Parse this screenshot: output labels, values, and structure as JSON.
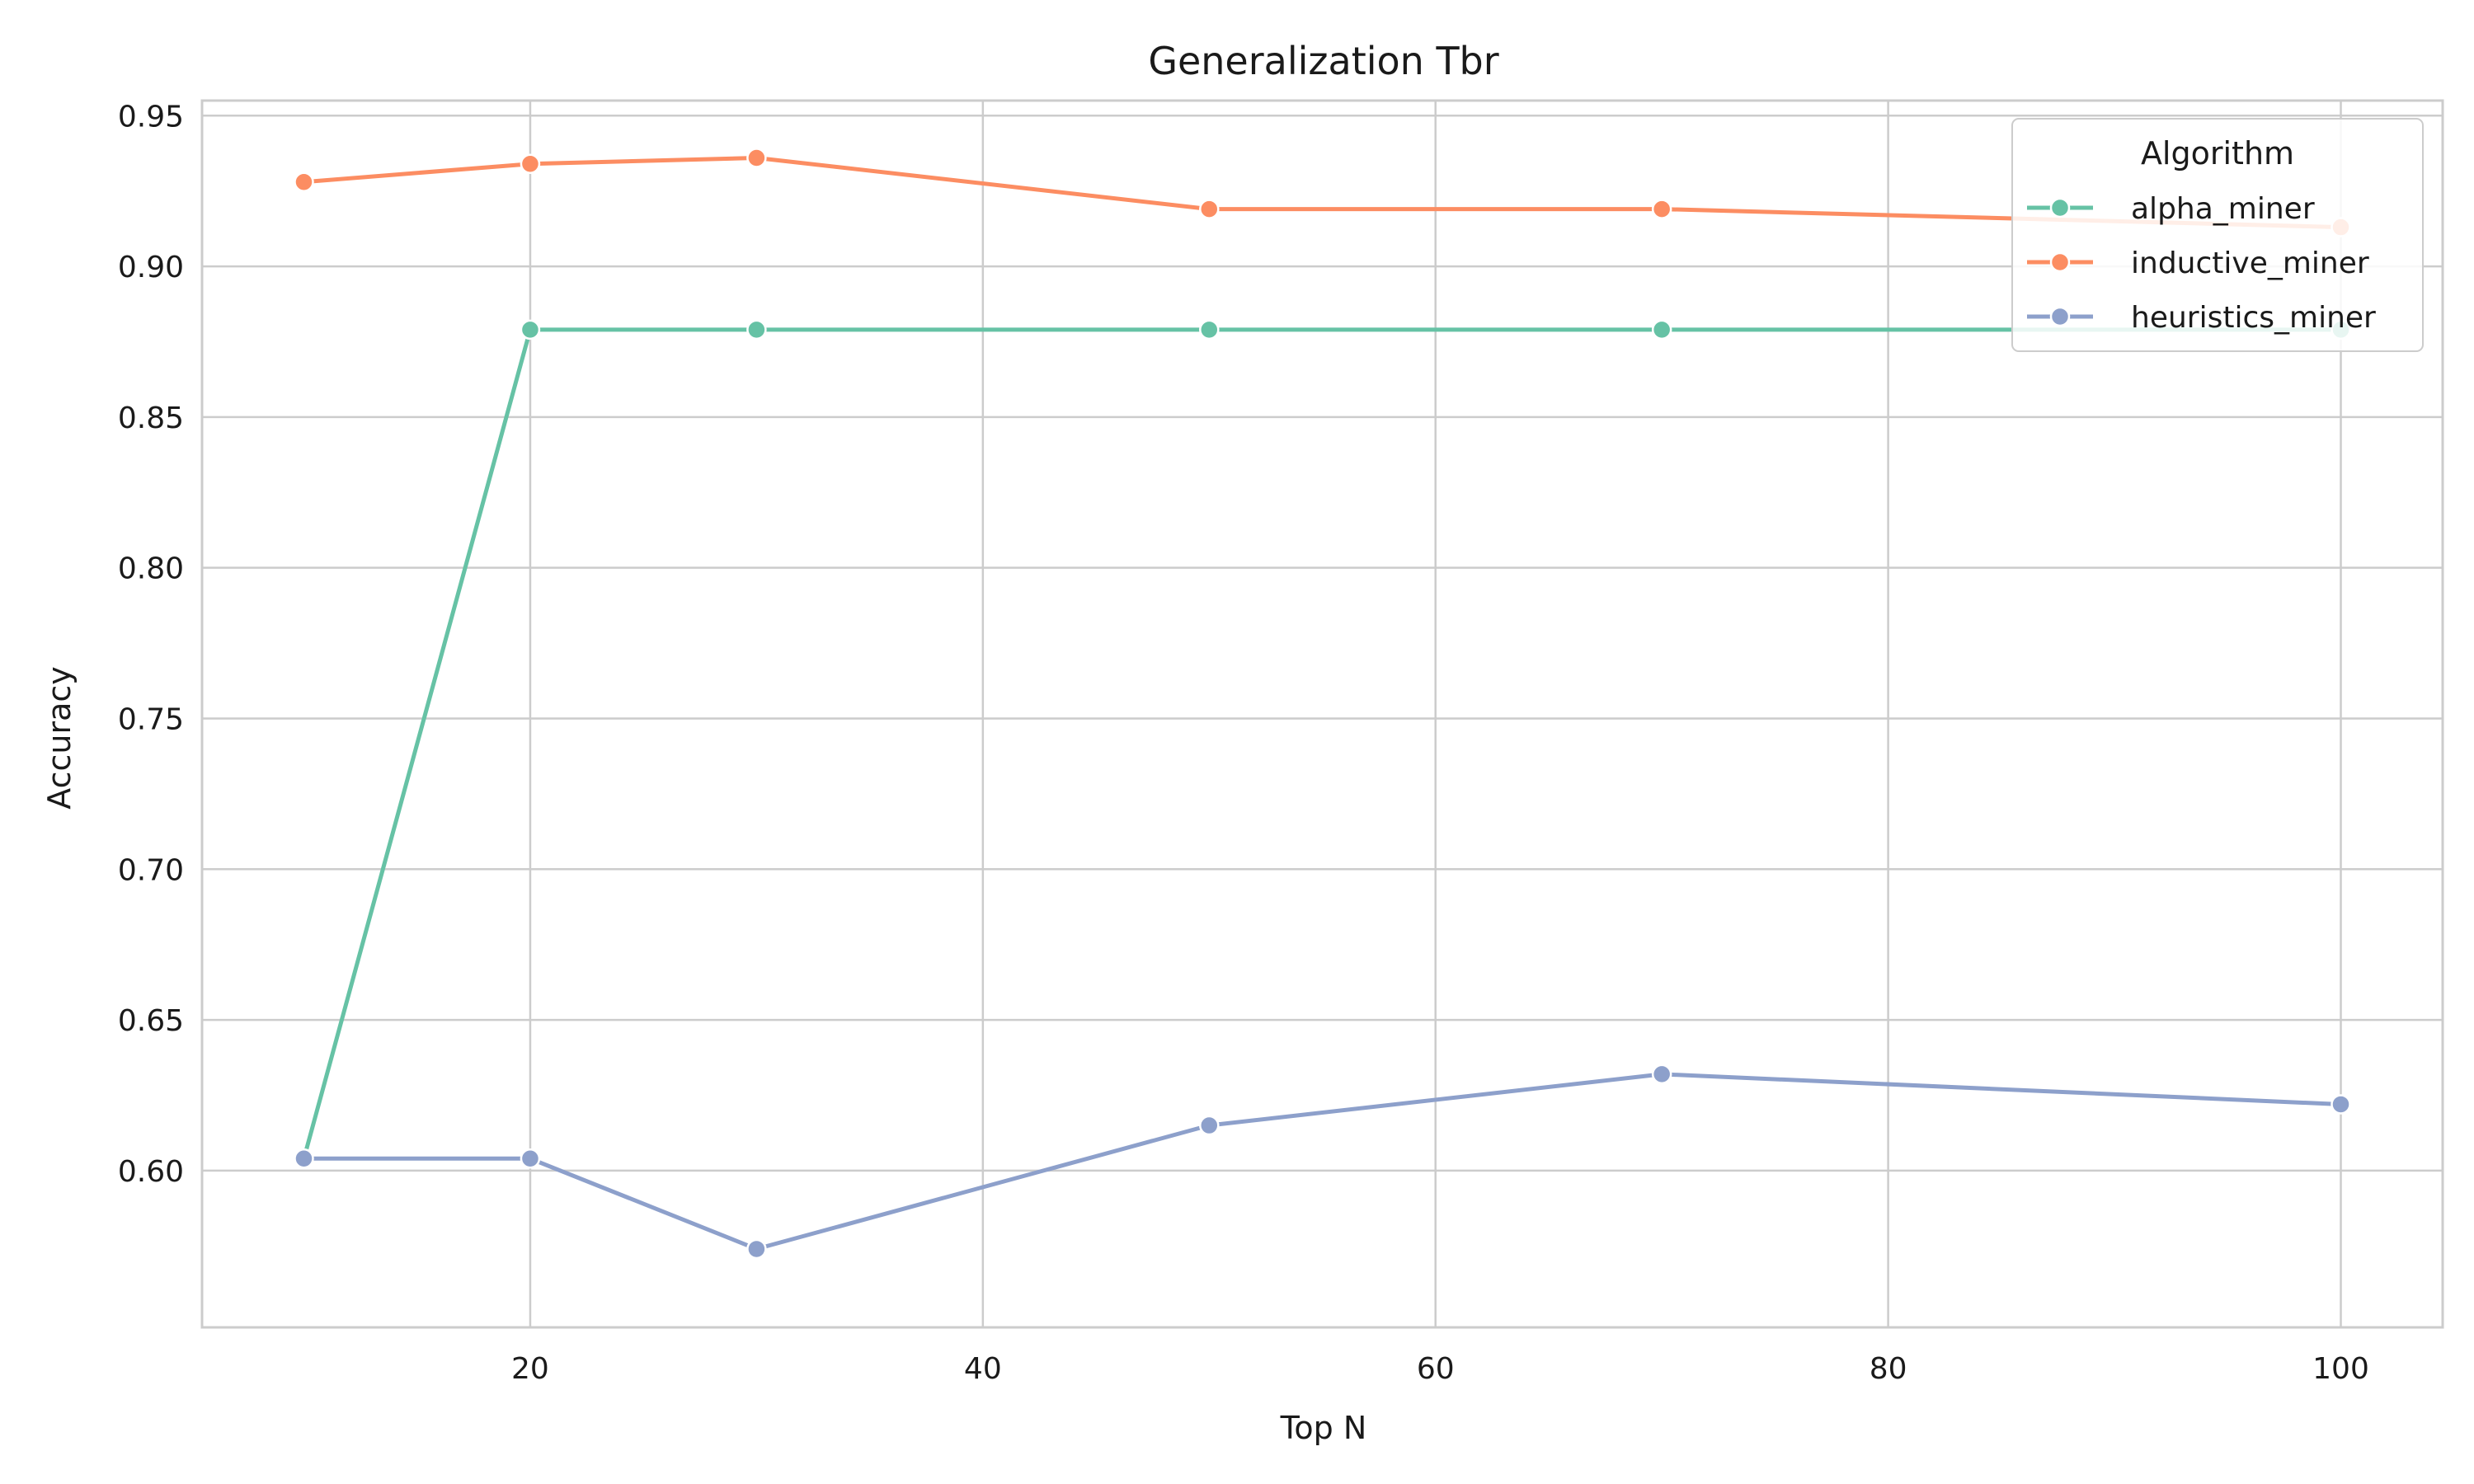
{
  "chart_data": {
    "type": "line",
    "title": "Generalization Tbr",
    "xlabel": "Top N",
    "ylabel": "Accuracy",
    "x": [
      10,
      20,
      30,
      50,
      70,
      100
    ],
    "xlim": [
      5.5,
      104.5
    ],
    "ylim": [
      0.548,
      0.955
    ],
    "xticks": [
      20,
      40,
      60,
      80,
      100
    ],
    "yticks": [
      0.6,
      0.65,
      0.7,
      0.75,
      0.8,
      0.85,
      0.9,
      0.95
    ],
    "grid": true,
    "legend": {
      "title": "Algorithm",
      "placement": "top-right"
    },
    "series": [
      {
        "name": "alpha_miner",
        "color": "#66c2a5",
        "values": [
          0.604,
          0.879,
          0.879,
          0.879,
          0.879,
          0.879
        ]
      },
      {
        "name": "inductive_miner",
        "color": "#fc8d62",
        "values": [
          0.928,
          0.934,
          0.936,
          0.919,
          0.919,
          0.913
        ]
      },
      {
        "name": "heuristics_miner",
        "color": "#8da0cb",
        "values": [
          0.604,
          0.604,
          0.574,
          0.615,
          0.632,
          0.622
        ]
      }
    ]
  }
}
